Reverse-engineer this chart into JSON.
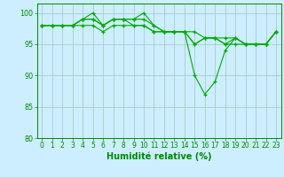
{
  "xlabel": "Humidité relative (%)",
  "background_color": "#cceeff",
  "grid_color": "#aacccc",
  "line_color": "#00aa00",
  "spine_color": "#008800",
  "tick_color": "#008800",
  "xlim": [
    -0.5,
    23.5
  ],
  "ylim": [
    80,
    101.5
  ],
  "yticks": [
    80,
    85,
    90,
    95,
    100
  ],
  "xticks": [
    0,
    1,
    2,
    3,
    4,
    5,
    6,
    7,
    8,
    9,
    10,
    11,
    12,
    13,
    14,
    15,
    16,
    17,
    18,
    19,
    20,
    21,
    22,
    23
  ],
  "xlabel_fontsize": 7,
  "tick_fontsize": 5.5,
  "series": [
    [
      98,
      98,
      98,
      98,
      99,
      100,
      98,
      99,
      99,
      99,
      100,
      98,
      97,
      97,
      97,
      90,
      87,
      89,
      94,
      96,
      95,
      95,
      95,
      97
    ],
    [
      98,
      98,
      98,
      98,
      99,
      99,
      98,
      99,
      99,
      98,
      98,
      97,
      97,
      97,
      97,
      95,
      96,
      96,
      96,
      96,
      95,
      95,
      95,
      97
    ],
    [
      98,
      98,
      98,
      98,
      98,
      98,
      97,
      98,
      98,
      98,
      98,
      97,
      97,
      97,
      97,
      97,
      96,
      96,
      95,
      95,
      95,
      95,
      95,
      97
    ],
    [
      98,
      98,
      98,
      98,
      99,
      99,
      98,
      99,
      99,
      99,
      99,
      98,
      97,
      97,
      97,
      95,
      96,
      96,
      95,
      96,
      95,
      95,
      95,
      97
    ]
  ]
}
